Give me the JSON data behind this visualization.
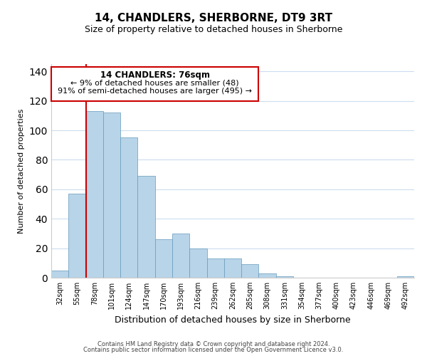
{
  "title": "14, CHANDLERS, SHERBORNE, DT9 3RT",
  "subtitle": "Size of property relative to detached houses in Sherborne",
  "xlabel": "Distribution of detached houses by size in Sherborne",
  "ylabel": "Number of detached properties",
  "categories": [
    "32sqm",
    "55sqm",
    "78sqm",
    "101sqm",
    "124sqm",
    "147sqm",
    "170sqm",
    "193sqm",
    "216sqm",
    "239sqm",
    "262sqm",
    "285sqm",
    "308sqm",
    "331sqm",
    "354sqm",
    "377sqm",
    "400sqm",
    "423sqm",
    "446sqm",
    "469sqm",
    "492sqm"
  ],
  "values": [
    5,
    57,
    113,
    112,
    95,
    69,
    26,
    30,
    20,
    13,
    13,
    9,
    3,
    1,
    0,
    0,
    0,
    0,
    0,
    0,
    1
  ],
  "bar_color": "#b8d4e8",
  "highlight_color": "#cc0000",
  "highlight_bar_index": 2,
  "ylim": [
    0,
    145
  ],
  "yticks": [
    0,
    20,
    40,
    60,
    80,
    100,
    120,
    140
  ],
  "annotation_title": "14 CHANDLERS: 76sqm",
  "annotation_line1": "← 9% of detached houses are smaller (48)",
  "annotation_line2": "91% of semi-detached houses are larger (495) →",
  "footer1": "Contains HM Land Registry data © Crown copyright and database right 2024.",
  "footer2": "Contains public sector information licensed under the Open Government Licence v3.0.",
  "background_color": "#ffffff",
  "grid_color": "#ccddee",
  "title_fontsize": 11,
  "subtitle_fontsize": 9,
  "ylabel_fontsize": 8,
  "xlabel_fontsize": 9,
  "tick_fontsize": 7,
  "footer_fontsize": 6
}
